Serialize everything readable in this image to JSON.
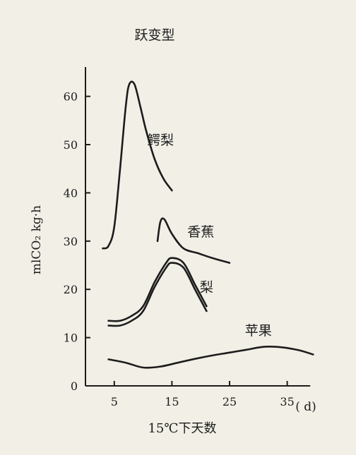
{
  "chart_data": {
    "type": "line",
    "title": "跃变型",
    "xlabel": "15℃下天数",
    "ylabel": "mlCO₂ kg·h",
    "x_unit": "( d)",
    "xlim": [
      0,
      39
    ],
    "ylim": [
      0,
      65
    ],
    "xticks": [
      5,
      15,
      25,
      35
    ],
    "yticks": [
      0,
      10,
      20,
      30,
      40,
      50,
      60
    ],
    "series": [
      {
        "name": "鳄梨",
        "points": [
          [
            3,
            28.5
          ],
          [
            4,
            29
          ],
          [
            5,
            33
          ],
          [
            6,
            45
          ],
          [
            7,
            58
          ],
          [
            7.6,
            62.5
          ],
          [
            8.5,
            62.5
          ],
          [
            9.5,
            58
          ],
          [
            10.5,
            53
          ],
          [
            12,
            47
          ],
          [
            13.5,
            43
          ],
          [
            15,
            40.5
          ]
        ]
      },
      {
        "name": "香蕉",
        "points": [
          [
            12.5,
            30
          ],
          [
            13,
            34
          ],
          [
            13.7,
            34.5
          ],
          [
            15,
            31.5
          ],
          [
            17,
            28.5
          ],
          [
            19.5,
            27.5
          ],
          [
            22,
            26.5
          ],
          [
            25,
            25.5
          ]
        ]
      },
      {
        "name": "梨",
        "points": [
          [
            4,
            13.5
          ],
          [
            6,
            13.5
          ],
          [
            8,
            14.5
          ],
          [
            10,
            16.5
          ],
          [
            12,
            21.5
          ],
          [
            14,
            25.5
          ],
          [
            15,
            26.5
          ],
          [
            17,
            25.5
          ],
          [
            19,
            21
          ],
          [
            21,
            16.5
          ]
        ]
      },
      {
        "name": "",
        "points": [
          [
            4,
            12.5
          ],
          [
            6,
            12.5
          ],
          [
            8,
            13.5
          ],
          [
            10,
            15.5
          ],
          [
            12,
            20.5
          ],
          [
            14,
            24.5
          ],
          [
            15,
            25.5
          ],
          [
            17,
            24.5
          ],
          [
            19,
            20
          ],
          [
            21,
            15.5
          ]
        ]
      },
      {
        "name": "苹果",
        "points": [
          [
            4,
            5.5
          ],
          [
            7,
            4.8
          ],
          [
            10,
            3.8
          ],
          [
            13,
            4
          ],
          [
            16,
            4.8
          ],
          [
            19,
            5.6
          ],
          [
            22,
            6.3
          ],
          [
            25,
            6.9
          ],
          [
            28,
            7.5
          ],
          [
            31,
            8.1
          ],
          [
            34,
            8
          ],
          [
            37,
            7.4
          ],
          [
            39.5,
            6.5
          ]
        ]
      }
    ],
    "labels": {
      "avocado": {
        "text": "鳄梨",
        "at": [
          13,
          50
        ]
      },
      "banana": {
        "text": "香蕉",
        "at": [
          20,
          31
        ]
      },
      "pear": {
        "text": "梨",
        "at": [
          21,
          19.5
        ]
      },
      "apple": {
        "text": "苹果",
        "at": [
          30,
          10.5
        ]
      }
    }
  }
}
